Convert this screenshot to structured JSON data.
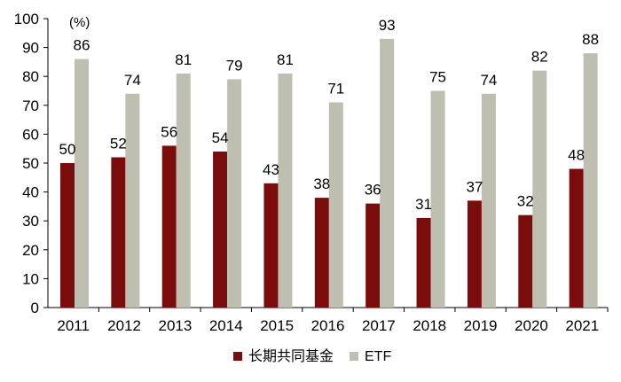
{
  "chart_data": {
    "type": "bar",
    "title": "",
    "xlabel": "",
    "ylabel": "",
    "unit_label": "(%)",
    "categories": [
      "2011",
      "2012",
      "2013",
      "2014",
      "2015",
      "2016",
      "2017",
      "2018",
      "2019",
      "2020",
      "2021"
    ],
    "series": [
      {
        "name": "长期共同基金",
        "color": "#7b0c0c",
        "values": [
          50,
          52,
          56,
          54,
          43,
          38,
          36,
          31,
          37,
          32,
          48
        ]
      },
      {
        "name": "ETF",
        "color": "#bfbfb1",
        "values": [
          86,
          74,
          81,
          79,
          81,
          71,
          93,
          75,
          74,
          82,
          88
        ]
      }
    ],
    "ylim": [
      0,
      100
    ],
    "yticks": [
      0,
      10,
      20,
      30,
      40,
      50,
      60,
      70,
      80,
      90,
      100
    ],
    "grid": false,
    "legend_position": "bottom"
  }
}
